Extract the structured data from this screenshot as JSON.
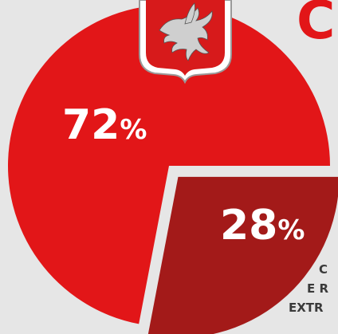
{
  "chart_data": {
    "type": "pie",
    "slices": [
      {
        "label": "",
        "value": 72,
        "display": "72",
        "unit": "%",
        "color": "#e21618",
        "exploded": false
      },
      {
        "label": "",
        "value": 28,
        "display": "28",
        "unit": "%",
        "color": "#a31a19",
        "exploded": true
      }
    ],
    "title": "",
    "legend": "none"
  },
  "side_label": {
    "lines": [
      "C",
      "E R",
      "EXTR"
    ],
    "color": "#3a3a3a"
  },
  "title_fragment": {
    "text": "C",
    "color": "#e21618"
  },
  "emblem": {
    "name": "tuscany-pegasus-crest",
    "background": "#d71a1b",
    "frame": "#ffffff"
  }
}
